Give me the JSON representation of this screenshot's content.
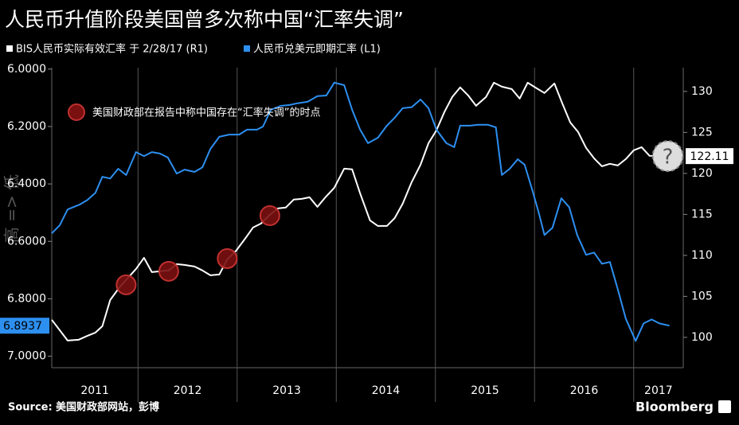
{
  "chart_data": {
    "type": "line",
    "title": "人民币升值阶段美国曾多次称中国“汇率失调”",
    "y_axis_label": "高 => 低",
    "y_inverted": true,
    "ylim": [
      5.995,
      7.04
    ],
    "yticks": [
      {
        "value": 6.0,
        "label": "6.0000"
      },
      {
        "value": 6.2,
        "label": "6.2000"
      },
      {
        "value": 6.4,
        "label": "6.4000"
      },
      {
        "value": 6.6,
        "label": "6.6000"
      },
      {
        "value": 6.8,
        "label": "6.8000"
      },
      {
        "value": 7.0,
        "label": "7.0000"
      }
    ],
    "y2lim": [
      96.3,
      132.9
    ],
    "y2ticks": [
      100,
      105,
      110,
      115,
      120,
      125,
      130
    ],
    "xlim": [
      2011.13,
      2017.5
    ],
    "xticks": [
      2012,
      2013,
      2014,
      2015,
      2016,
      2017
    ],
    "year_labels": [
      "2011",
      "2012",
      "2013",
      "2014",
      "2015",
      "2016",
      "2017"
    ],
    "series": [
      {
        "name": "BIS人民币实际有效汇率 于 2/28/17 (R1)",
        "color": "#ffffff",
        "axis": "y2",
        "x": [
          2011.13,
          2011.21,
          2011.29,
          2011.4,
          2011.49,
          2011.57,
          2011.64,
          2011.72,
          2011.82,
          2011.9,
          2011.98,
          2012.06,
          2012.14,
          2012.22,
          2012.31,
          2012.39,
          2012.47,
          2012.57,
          2012.65,
          2012.73,
          2012.82,
          2012.9,
          2012.99,
          2013.08,
          2013.16,
          2013.24,
          2013.33,
          2013.41,
          2013.49,
          2013.57,
          2013.65,
          2013.73,
          2013.81,
          2013.89,
          2013.98,
          2014.08,
          2014.16,
          2014.24,
          2014.34,
          2014.42,
          2014.51,
          2014.59,
          2014.67,
          2014.76,
          2014.85,
          2014.93,
          2015.01,
          2015.09,
          2015.17,
          2015.25,
          2015.33,
          2015.41,
          2015.51,
          2015.59,
          2015.67,
          2015.77,
          2015.85,
          2015.93,
          2016.02,
          2016.1,
          2016.2,
          2016.28,
          2016.36,
          2016.44,
          2016.52,
          2016.6,
          2016.68,
          2016.76,
          2016.84,
          2016.92,
          2017.0,
          2017.08,
          2017.16,
          2017.36
        ],
        "values": [
          102.14,
          100.87,
          99.61,
          99.71,
          100.19,
          100.58,
          101.36,
          104.56,
          106.21,
          107.28,
          108.35,
          109.71,
          107.96,
          108.06,
          108.16,
          108.93,
          108.83,
          108.64,
          108.16,
          107.57,
          107.67,
          109.51,
          110.58,
          112.04,
          113.4,
          113.88,
          114.95,
          115.73,
          115.83,
          116.8,
          116.89,
          117.09,
          115.92,
          117.09,
          118.25,
          120.58,
          120.49,
          117.57,
          114.27,
          113.59,
          113.59,
          114.56,
          116.31,
          118.93,
          121.07,
          123.69,
          125.24,
          127.48,
          129.32,
          130.49,
          129.51,
          128.25,
          129.32,
          131.07,
          130.58,
          130.29,
          129.13,
          131.07,
          130.39,
          129.81,
          130.97,
          128.54,
          126.21,
          125.05,
          123.11,
          121.84,
          120.87,
          121.17,
          120.97,
          121.75,
          122.82,
          123.2,
          122.14,
          122.11
        ]
      },
      {
        "name": "人民币兑美元即期汇率 (L1)",
        "color": "#2d8ff0",
        "axis": "y",
        "x": [
          2011.13,
          2011.21,
          2011.29,
          2011.41,
          2011.49,
          2011.57,
          2011.64,
          2011.72,
          2011.8,
          2011.88,
          2011.98,
          2012.06,
          2012.14,
          2012.22,
          2012.3,
          2012.39,
          2012.47,
          2012.57,
          2012.65,
          2012.73,
          2012.82,
          2012.92,
          2013.02,
          2013.1,
          2013.2,
          2013.26,
          2013.34,
          2013.44,
          2013.53,
          2013.61,
          2013.71,
          2013.81,
          2013.9,
          2013.98,
          2014.08,
          2014.16,
          2014.24,
          2014.32,
          2014.42,
          2014.51,
          2014.59,
          2014.67,
          2014.76,
          2014.85,
          2014.93,
          2015.01,
          2015.11,
          2015.19,
          2015.25,
          2015.35,
          2015.43,
          2015.53,
          2015.61,
          2015.67,
          2015.75,
          2015.83,
          2015.9,
          2015.98,
          2016.04,
          2016.1,
          2016.18,
          2016.27,
          2016.35,
          2016.43,
          2016.52,
          2016.6,
          2016.68,
          2016.76,
          2016.84,
          2016.92,
          2017.02,
          2017.1,
          2017.18,
          2017.26,
          2017.36
        ],
        "values": [
          6.572,
          6.544,
          6.489,
          6.472,
          6.456,
          6.431,
          6.375,
          6.381,
          6.347,
          6.369,
          6.289,
          6.303,
          6.289,
          6.294,
          6.308,
          6.364,
          6.35,
          6.358,
          6.342,
          6.278,
          6.236,
          6.228,
          6.228,
          6.211,
          6.211,
          6.2,
          6.142,
          6.128,
          6.125,
          6.119,
          6.114,
          6.094,
          6.092,
          6.047,
          6.056,
          6.142,
          6.211,
          6.258,
          6.239,
          6.197,
          6.169,
          6.136,
          6.133,
          6.106,
          6.136,
          6.211,
          6.258,
          6.272,
          6.197,
          6.197,
          6.194,
          6.194,
          6.203,
          6.369,
          6.347,
          6.314,
          6.333,
          6.425,
          6.497,
          6.578,
          6.553,
          6.45,
          6.481,
          6.578,
          6.647,
          6.639,
          6.678,
          6.672,
          6.767,
          6.869,
          6.947,
          6.886,
          6.872,
          6.886,
          6.8937
        ]
      }
    ],
    "markers": {
      "label": "美国财政部在报告中称中国存在“汇率失调”的时点",
      "color": "#7a1010",
      "axis": "y2",
      "x": [
        2011.88,
        2012.31,
        2012.9,
        2013.33
      ],
      "values": [
        106.41,
        108.06,
        109.61,
        114.85
      ]
    },
    "pending_marker_text": "?",
    "source_label": "Source:",
    "source": "美国财政部网站，彭博",
    "brand": "Bloomberg"
  }
}
